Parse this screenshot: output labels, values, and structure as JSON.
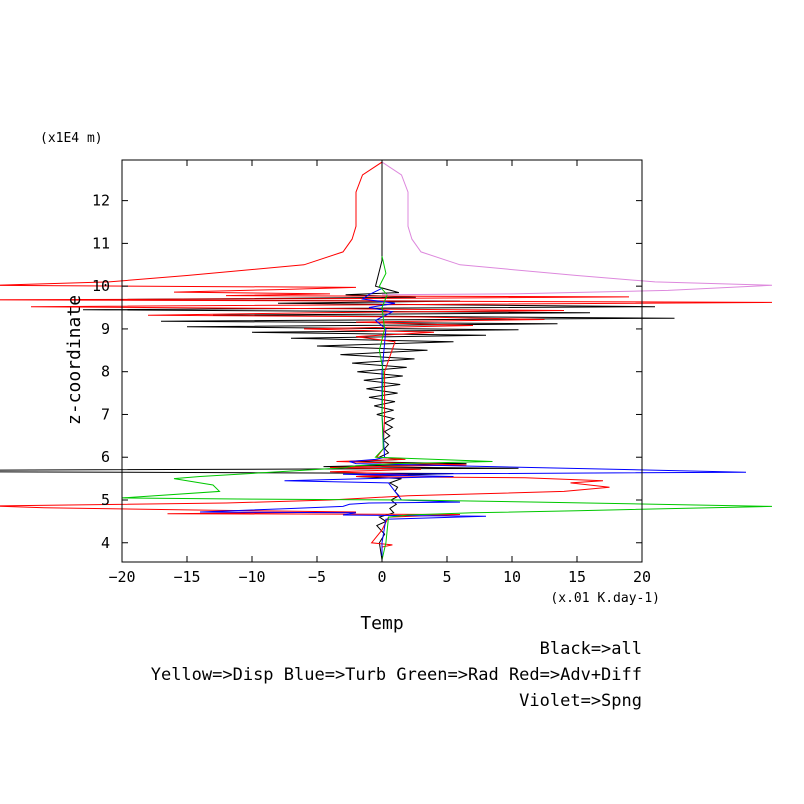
{
  "chart_data": {
    "type": "line",
    "title": "",
    "xlabel": "Temp",
    "ylabel": "z-coordinate",
    "x_units": "(x.01 K.day-1)",
    "y_units": "(x1E4 m)",
    "xlim": [
      -20,
      20
    ],
    "ylim": [
      3.55,
      12.95
    ],
    "x_ticks": [
      -20,
      -15,
      -10,
      -5,
      0,
      5,
      10,
      15,
      20
    ],
    "y_ticks": [
      4,
      5,
      6,
      7,
      8,
      9,
      10,
      11,
      12
    ],
    "grid": false,
    "legend_lines": [
      "Black=>all",
      "Yellow=>Disp Blue=>Turb Green=>Rad Red=>Adv+Diff",
      "Violet=>Spng"
    ],
    "series": [
      {
        "color": "#000000",
        "points": [
          [
            0,
            12.9
          ],
          [
            0,
            10.6
          ],
          [
            -0.5,
            10.0
          ],
          [
            1.3,
            9.85
          ],
          [
            -2.8,
            9.8
          ],
          [
            2.6,
            9.74
          ],
          [
            -23.5,
            9.68
          ],
          [
            6.0,
            9.65
          ],
          [
            -8.0,
            9.6
          ],
          [
            21.0,
            9.52
          ],
          [
            -23.0,
            9.45
          ],
          [
            16.0,
            9.38
          ],
          [
            -13.0,
            9.32
          ],
          [
            22.5,
            9.25
          ],
          [
            -17.0,
            9.18
          ],
          [
            13.5,
            9.12
          ],
          [
            -15.0,
            9.05
          ],
          [
            10.5,
            8.98
          ],
          [
            -10.0,
            8.92
          ],
          [
            8.0,
            8.85
          ],
          [
            -7.0,
            8.78
          ],
          [
            5.5,
            8.7
          ],
          [
            -5.0,
            8.6
          ],
          [
            3.5,
            8.5
          ],
          [
            -3.2,
            8.4
          ],
          [
            2.5,
            8.3
          ],
          [
            -2.3,
            8.2
          ],
          [
            1.9,
            8.1
          ],
          [
            -1.9,
            8.0
          ],
          [
            1.6,
            7.9
          ],
          [
            -1.4,
            7.8
          ],
          [
            1.4,
            7.7
          ],
          [
            -1.2,
            7.6
          ],
          [
            1.2,
            7.5
          ],
          [
            -1.0,
            7.4
          ],
          [
            1.0,
            7.3
          ],
          [
            -0.6,
            7.2
          ],
          [
            0.9,
            7.1
          ],
          [
            -0.4,
            7.0
          ],
          [
            0.9,
            6.9
          ],
          [
            0.2,
            6.8
          ],
          [
            0.8,
            6.7
          ],
          [
            0.2,
            6.6
          ],
          [
            0.6,
            6.5
          ],
          [
            0.1,
            6.4
          ],
          [
            0.5,
            6.3
          ],
          [
            0.2,
            6.2
          ],
          [
            0.5,
            6.1
          ],
          [
            -0.2,
            6.0
          ],
          [
            1.5,
            5.95
          ],
          [
            -2.5,
            5.9
          ],
          [
            6.5,
            5.85
          ],
          [
            -4.5,
            5.78
          ],
          [
            10.5,
            5.74
          ],
          [
            -30.0,
            5.7
          ],
          [
            -30.0,
            5.66
          ],
          [
            5.5,
            5.62
          ],
          [
            -2.0,
            5.55
          ],
          [
            1.5,
            5.5
          ],
          [
            0.6,
            5.4
          ],
          [
            1.2,
            5.3
          ],
          [
            1.0,
            5.2
          ],
          [
            1.3,
            5.1
          ],
          [
            0.7,
            5.0
          ],
          [
            1.1,
            4.9
          ],
          [
            0.6,
            4.8
          ],
          [
            0.9,
            4.7
          ],
          [
            -0.2,
            4.6
          ],
          [
            0.3,
            4.5
          ],
          [
            -0.4,
            4.4
          ],
          [
            0.2,
            4.2
          ],
          [
            -0.2,
            4.0
          ],
          [
            0,
            3.6
          ]
        ]
      },
      {
        "color": "#ff0000",
        "points": [
          [
            0,
            12.9
          ],
          [
            -1.5,
            12.6
          ],
          [
            -2.0,
            12.2
          ],
          [
            -2.0,
            11.4
          ],
          [
            -2.3,
            11.1
          ],
          [
            -3.0,
            10.8
          ],
          [
            -6.0,
            10.5
          ],
          [
            -15.0,
            10.25
          ],
          [
            -21.0,
            10.1
          ],
          [
            -30.0,
            10.02
          ],
          [
            -2.0,
            9.97
          ],
          [
            -8.0,
            9.92
          ],
          [
            -16.0,
            9.86
          ],
          [
            -4.0,
            9.82
          ],
          [
            -12.0,
            9.78
          ],
          [
            19.0,
            9.75
          ],
          [
            -3.0,
            9.71
          ],
          [
            -30.0,
            9.68
          ],
          [
            1.5,
            9.65
          ],
          [
            30.0,
            9.62
          ],
          [
            8.0,
            9.58
          ],
          [
            -27.0,
            9.52
          ],
          [
            -3.0,
            9.47
          ],
          [
            14.0,
            9.43
          ],
          [
            -5.0,
            9.38
          ],
          [
            -18.0,
            9.32
          ],
          [
            3.0,
            9.28
          ],
          [
            12.5,
            9.22
          ],
          [
            -2.0,
            9.16
          ],
          [
            7.0,
            9.08
          ],
          [
            -6.0,
            9.0
          ],
          [
            4.0,
            8.92
          ],
          [
            -2.0,
            8.82
          ],
          [
            1.0,
            8.7
          ],
          [
            0.2,
            8.0
          ],
          [
            0.2,
            7.0
          ],
          [
            0.1,
            6.2
          ],
          [
            -0.4,
            6.0
          ],
          [
            1.8,
            5.95
          ],
          [
            -3.5,
            5.9
          ],
          [
            6.5,
            5.82
          ],
          [
            -4.0,
            5.76
          ],
          [
            3.0,
            5.72
          ],
          [
            -4.0,
            5.66
          ],
          [
            2.0,
            5.6
          ],
          [
            -2.0,
            5.55
          ],
          [
            11.0,
            5.52
          ],
          [
            17.0,
            5.45
          ],
          [
            14.5,
            5.4
          ],
          [
            17.5,
            5.3
          ],
          [
            14.0,
            5.2
          ],
          [
            8.0,
            5.15
          ],
          [
            2.0,
            5.1
          ],
          [
            -1.0,
            5.05
          ],
          [
            -4.0,
            5.0
          ],
          [
            -12.0,
            4.93
          ],
          [
            -30.0,
            4.86
          ],
          [
            -26.0,
            4.82
          ],
          [
            -13.0,
            4.76
          ],
          [
            -2.0,
            4.72
          ],
          [
            -16.5,
            4.68
          ],
          [
            6.0,
            4.66
          ],
          [
            0.5,
            4.6
          ],
          [
            0.0,
            4.3
          ],
          [
            -0.8,
            4.0
          ],
          [
            0.8,
            3.95
          ],
          [
            0.0,
            3.9
          ],
          [
            0,
            3.6
          ]
        ]
      },
      {
        "color": "#0000ff",
        "points": [
          [
            0,
            9.95
          ],
          [
            -1.0,
            9.8
          ],
          [
            -1.5,
            9.7
          ],
          [
            1.0,
            9.6
          ],
          [
            -1.0,
            9.5
          ],
          [
            0.8,
            9.4
          ],
          [
            -0.5,
            9.2
          ],
          [
            0.3,
            9.0
          ],
          [
            0.0,
            8.0
          ],
          [
            0.0,
            7.0
          ],
          [
            0.2,
            6.0
          ],
          [
            -0.5,
            5.95
          ],
          [
            -2.5,
            5.9
          ],
          [
            -2.0,
            5.85
          ],
          [
            28.0,
            5.65
          ],
          [
            -3.0,
            5.6
          ],
          [
            5.5,
            5.55
          ],
          [
            -7.5,
            5.45
          ],
          [
            0.5,
            5.4
          ],
          [
            1.0,
            5.2
          ],
          [
            1.5,
            5.0
          ],
          [
            6.0,
            4.95
          ],
          [
            -1.0,
            4.93
          ],
          [
            -2.5,
            4.9
          ],
          [
            -3.0,
            4.85
          ],
          [
            -7.0,
            4.8
          ],
          [
            -14.0,
            4.72
          ],
          [
            -2.0,
            4.7
          ],
          [
            -3.0,
            4.65
          ],
          [
            8.0,
            4.62
          ],
          [
            0.3,
            4.55
          ],
          [
            0.0,
            4.0
          ],
          [
            0,
            3.6
          ]
        ]
      },
      {
        "color": "#00c800",
        "points": [
          [
            0,
            10.7
          ],
          [
            0.3,
            10.3
          ],
          [
            -0.2,
            10.0
          ],
          [
            0.4,
            9.8
          ],
          [
            0.0,
            9.5
          ],
          [
            0.2,
            9.0
          ],
          [
            -0.2,
            8.5
          ],
          [
            0.1,
            8.0
          ],
          [
            0.0,
            7.0
          ],
          [
            0.1,
            6.2
          ],
          [
            -0.5,
            6.0
          ],
          [
            8.5,
            5.9
          ],
          [
            1.0,
            5.85
          ],
          [
            -2.0,
            5.8
          ],
          [
            -3.0,
            5.75
          ],
          [
            -14.0,
            5.55
          ],
          [
            -16.0,
            5.5
          ],
          [
            -13.0,
            5.35
          ],
          [
            -12.5,
            5.2
          ],
          [
            -20.0,
            5.05
          ],
          [
            -10.0,
            5.02
          ],
          [
            2.0,
            5.0
          ],
          [
            12.0,
            4.95
          ],
          [
            30.0,
            4.85
          ],
          [
            15.0,
            4.75
          ],
          [
            7.0,
            4.7
          ],
          [
            2.0,
            4.65
          ],
          [
            0.5,
            4.6
          ],
          [
            0.3,
            4.0
          ],
          [
            0,
            3.6
          ]
        ]
      },
      {
        "color": "#dd88dd",
        "points": [
          [
            0,
            12.9
          ],
          [
            1.5,
            12.6
          ],
          [
            2.0,
            12.2
          ],
          [
            2.0,
            11.4
          ],
          [
            2.3,
            11.1
          ],
          [
            3.0,
            10.8
          ],
          [
            6.0,
            10.5
          ],
          [
            15.0,
            10.25
          ],
          [
            21.0,
            10.1
          ],
          [
            30.0,
            10.02
          ],
          [
            22.0,
            9.9
          ],
          [
            10.0,
            9.82
          ],
          [
            0,
            9.8
          ]
        ]
      }
    ]
  }
}
